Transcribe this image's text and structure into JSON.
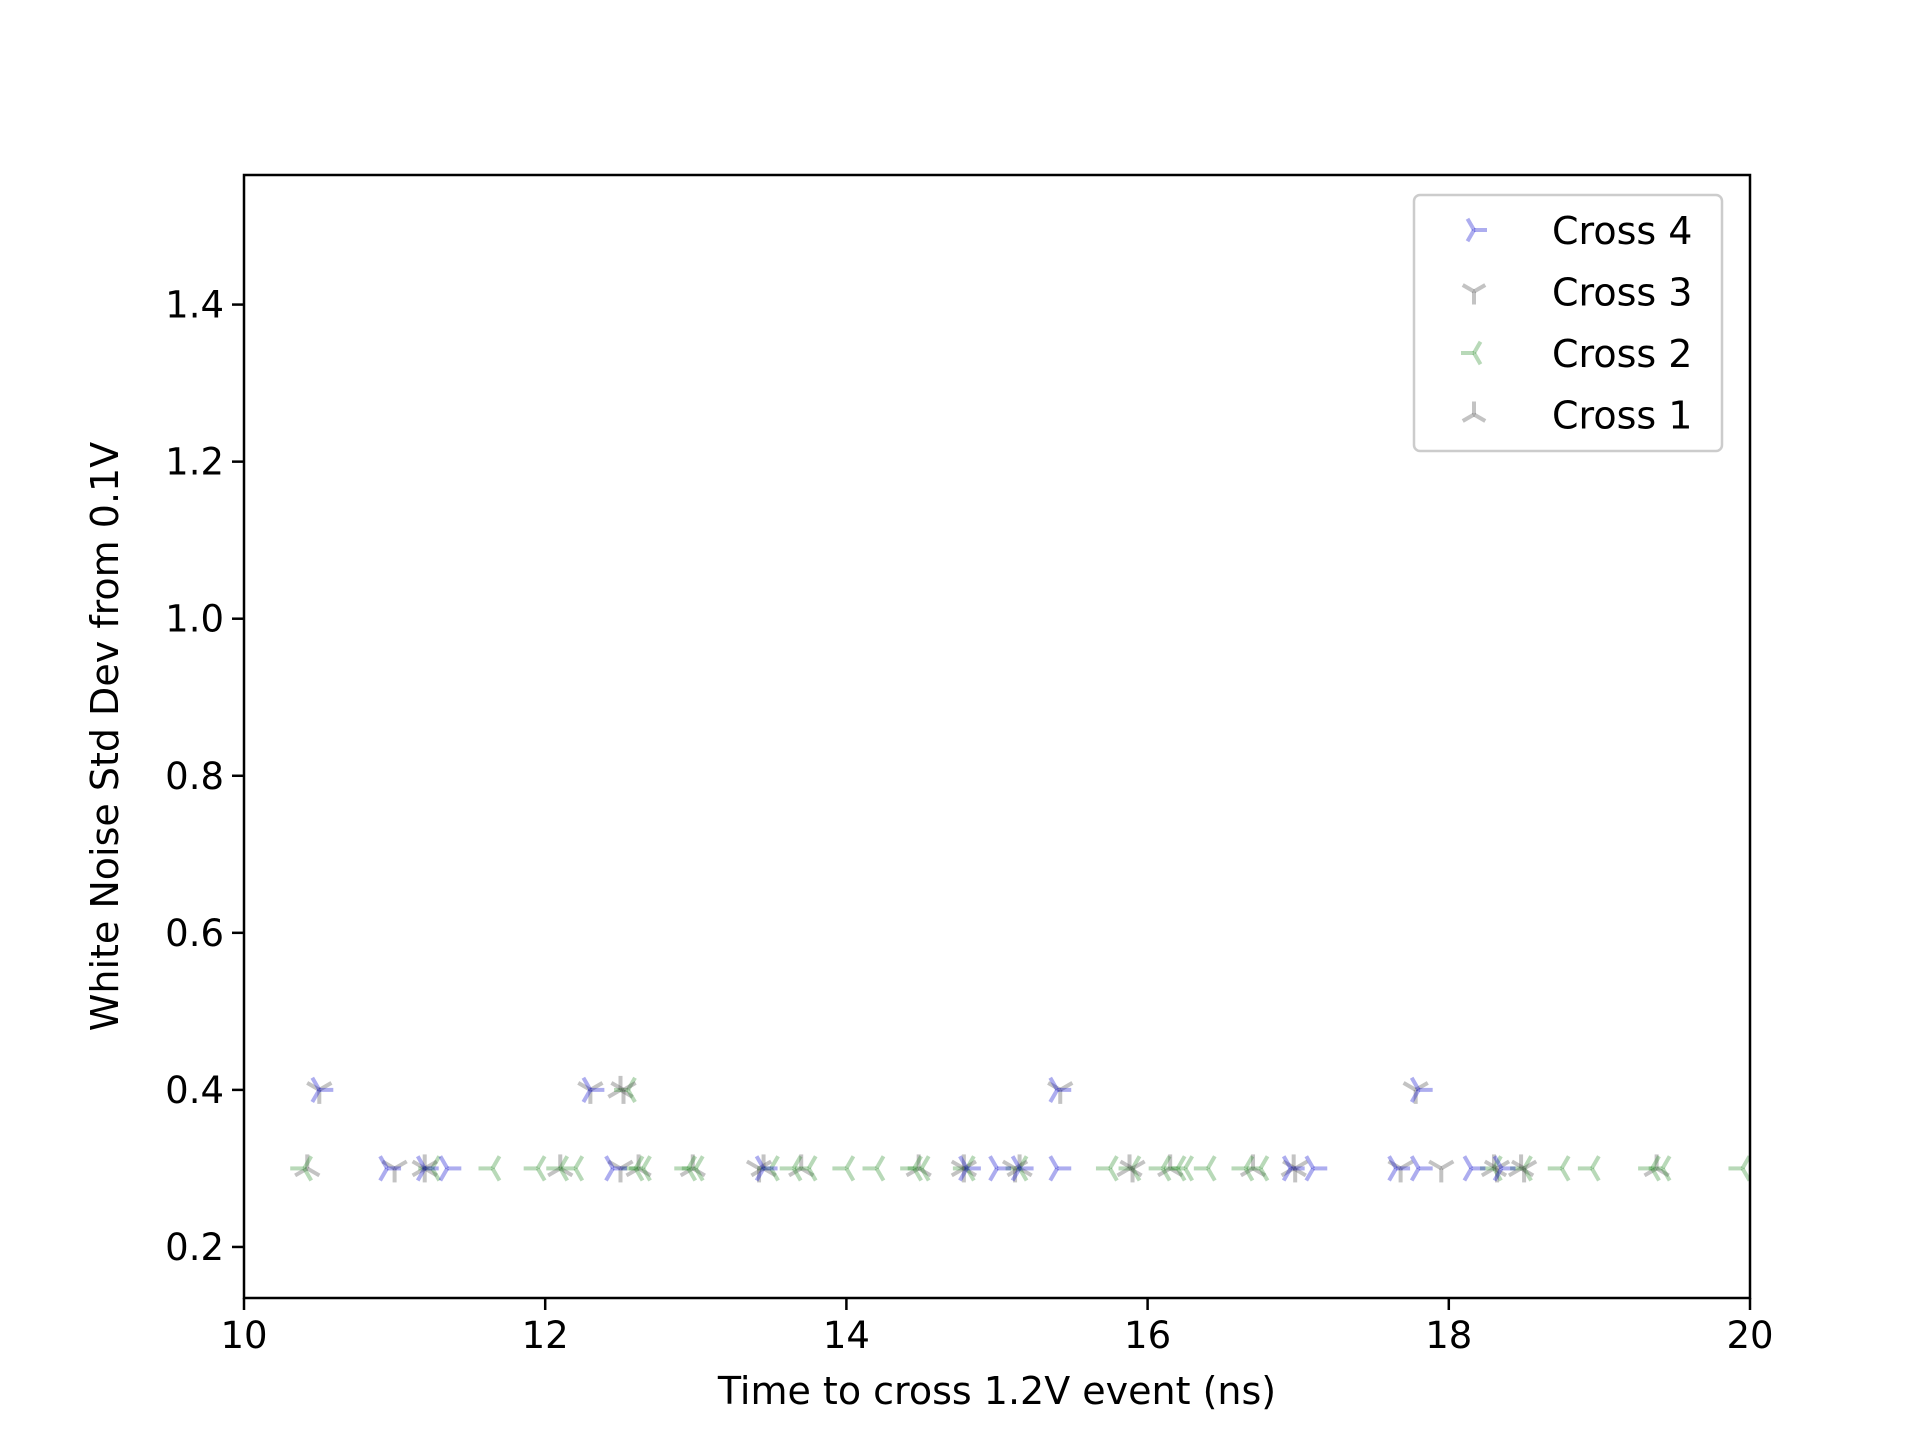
{
  "chart_data": {
    "type": "scatter",
    "title": "",
    "xlabel": "Time to cross 1.2V event (ns)",
    "ylabel": "White Noise Std Dev from 0.1V",
    "xlim": [
      10,
      20
    ],
    "ylim": [
      0.135,
      1.565
    ],
    "xticks": [
      10,
      12,
      14,
      16,
      18,
      20
    ],
    "yticks": [
      0.2,
      0.4,
      0.6,
      0.8,
      1.0,
      1.2,
      1.4
    ],
    "ytick_labels": [
      "0.2",
      "0.4",
      "0.6",
      "0.8",
      "1.0",
      "1.2",
      "1.4"
    ],
    "grid": false,
    "legend_position": "top-right",
    "series": [
      {
        "name": "Cross 4",
        "marker": "tri-right",
        "color": "#0000cc",
        "points": [
          [
            10.5,
            0.4
          ],
          [
            12.3,
            0.4
          ],
          [
            15.4,
            0.4
          ],
          [
            17.8,
            0.4
          ],
          [
            10.95,
            0.3
          ],
          [
            11.2,
            0.3
          ],
          [
            11.35,
            0.3
          ],
          [
            12.45,
            0.3
          ],
          [
            13.45,
            0.3
          ],
          [
            14.8,
            0.3
          ],
          [
            15.0,
            0.3
          ],
          [
            15.15,
            0.3
          ],
          [
            15.4,
            0.3
          ],
          [
            16.95,
            0.3
          ],
          [
            17.1,
            0.3
          ],
          [
            17.65,
            0.3
          ],
          [
            17.8,
            0.3
          ],
          [
            18.15,
            0.3
          ],
          [
            18.35,
            0.3
          ]
        ]
      },
      {
        "name": "Cross 3",
        "marker": "tri-down",
        "color": "#444444",
        "points": [
          [
            10.5,
            0.4
          ],
          [
            12.3,
            0.4
          ],
          [
            12.52,
            0.4
          ],
          [
            15.42,
            0.4
          ],
          [
            17.78,
            0.4
          ],
          [
            11.0,
            0.3
          ],
          [
            11.2,
            0.3
          ],
          [
            12.5,
            0.3
          ],
          [
            13.42,
            0.3
          ],
          [
            14.78,
            0.3
          ],
          [
            15.12,
            0.3
          ],
          [
            15.9,
            0.3
          ],
          [
            16.98,
            0.3
          ],
          [
            17.68,
            0.3
          ],
          [
            17.95,
            0.3
          ],
          [
            18.32,
            0.3
          ],
          [
            18.5,
            0.3
          ]
        ]
      },
      {
        "name": "Cross 2",
        "marker": "tri-left",
        "color": "#228822",
        "points": [
          [
            12.55,
            0.4
          ],
          [
            10.4,
            0.3
          ],
          [
            11.25,
            0.3
          ],
          [
            11.65,
            0.3
          ],
          [
            11.95,
            0.3
          ],
          [
            12.1,
            0.3
          ],
          [
            12.2,
            0.3
          ],
          [
            12.6,
            0.3
          ],
          [
            12.65,
            0.3
          ],
          [
            12.95,
            0.3
          ],
          [
            13.0,
            0.3
          ],
          [
            13.5,
            0.3
          ],
          [
            13.65,
            0.3
          ],
          [
            13.75,
            0.3
          ],
          [
            14.0,
            0.3
          ],
          [
            14.2,
            0.3
          ],
          [
            14.45,
            0.3
          ],
          [
            14.5,
            0.3
          ],
          [
            14.8,
            0.3
          ],
          [
            15.15,
            0.3
          ],
          [
            15.75,
            0.3
          ],
          [
            15.9,
            0.3
          ],
          [
            16.1,
            0.3
          ],
          [
            16.2,
            0.3
          ],
          [
            16.25,
            0.3
          ],
          [
            16.4,
            0.3
          ],
          [
            16.65,
            0.3
          ],
          [
            16.75,
            0.3
          ],
          [
            18.3,
            0.3
          ],
          [
            18.5,
            0.3
          ],
          [
            18.75,
            0.3
          ],
          [
            18.95,
            0.3
          ],
          [
            19.35,
            0.3
          ],
          [
            19.42,
            0.3
          ],
          [
            19.95,
            0.3
          ]
        ]
      },
      {
        "name": "Cross 1",
        "marker": "tri-up",
        "color": "#444444",
        "points": [
          [
            12.5,
            0.4
          ],
          [
            10.42,
            0.3
          ],
          [
            11.2,
            0.3
          ],
          [
            12.1,
            0.3
          ],
          [
            12.62,
            0.3
          ],
          [
            12.98,
            0.3
          ],
          [
            13.45,
            0.3
          ],
          [
            13.7,
            0.3
          ],
          [
            14.48,
            0.3
          ],
          [
            14.78,
            0.3
          ],
          [
            15.15,
            0.3
          ],
          [
            15.88,
            0.3
          ],
          [
            16.15,
            0.3
          ],
          [
            16.7,
            0.3
          ],
          [
            16.97,
            0.3
          ],
          [
            18.3,
            0.3
          ],
          [
            18.48,
            0.3
          ],
          [
            19.38,
            0.3
          ]
        ]
      }
    ]
  }
}
